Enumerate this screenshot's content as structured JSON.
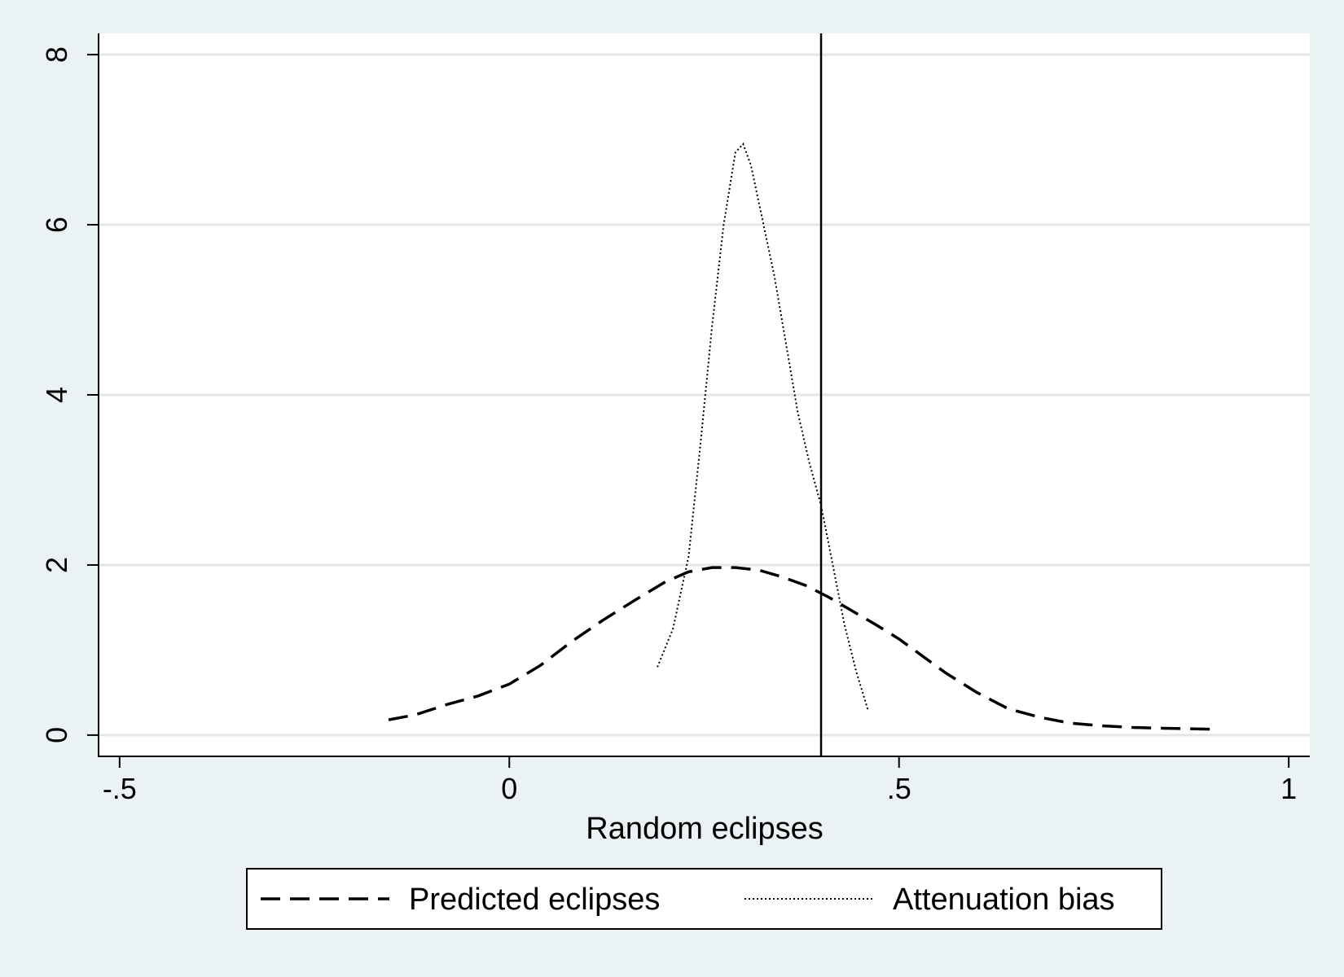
{
  "chart_data": {
    "type": "line",
    "title": "",
    "xlabel": "Random eclipses",
    "ylabel": "",
    "xlim": [
      -0.527,
      1.027
    ],
    "ylim": [
      -0.25,
      8.25
    ],
    "x_ticks": [
      -0.5,
      0,
      0.5,
      1
    ],
    "x_tick_labels": [
      "-.5",
      "0",
      ".5",
      "1"
    ],
    "y_ticks": [
      0,
      2,
      4,
      6,
      8
    ],
    "y_tick_labels": [
      "0",
      "2",
      "4",
      "6",
      "8"
    ],
    "grid": "horizontal",
    "legend_position": "bottom",
    "reference_line": {
      "axis": "x",
      "value": 0.4
    },
    "series": [
      {
        "name": "Predicted eclipses",
        "style": "dashed",
        "x": [
          -0.155,
          -0.12,
          -0.08,
          -0.04,
          0.0,
          0.04,
          0.08,
          0.12,
          0.16,
          0.2,
          0.23,
          0.26,
          0.29,
          0.32,
          0.35,
          0.38,
          0.41,
          0.44,
          0.47,
          0.5,
          0.53,
          0.56,
          0.6,
          0.64,
          0.68,
          0.72,
          0.76,
          0.8,
          0.84,
          0.9
        ],
        "y": [
          0.18,
          0.24,
          0.36,
          0.46,
          0.6,
          0.82,
          1.1,
          1.35,
          1.58,
          1.8,
          1.92,
          1.97,
          1.97,
          1.94,
          1.86,
          1.76,
          1.62,
          1.46,
          1.3,
          1.13,
          0.93,
          0.73,
          0.5,
          0.31,
          0.21,
          0.14,
          0.11,
          0.09,
          0.08,
          0.07
        ]
      },
      {
        "name": "Attenuation bias",
        "style": "dotted",
        "x": [
          0.19,
          0.21,
          0.23,
          0.245,
          0.26,
          0.275,
          0.29,
          0.3,
          0.31,
          0.325,
          0.34,
          0.355,
          0.37,
          0.385,
          0.4,
          0.415,
          0.43,
          0.445,
          0.46
        ],
        "y": [
          0.8,
          1.25,
          2.1,
          3.4,
          4.8,
          6.0,
          6.85,
          6.95,
          6.7,
          6.05,
          5.4,
          4.6,
          3.8,
          3.2,
          2.7,
          2.0,
          1.3,
          0.75,
          0.3
        ]
      }
    ]
  }
}
